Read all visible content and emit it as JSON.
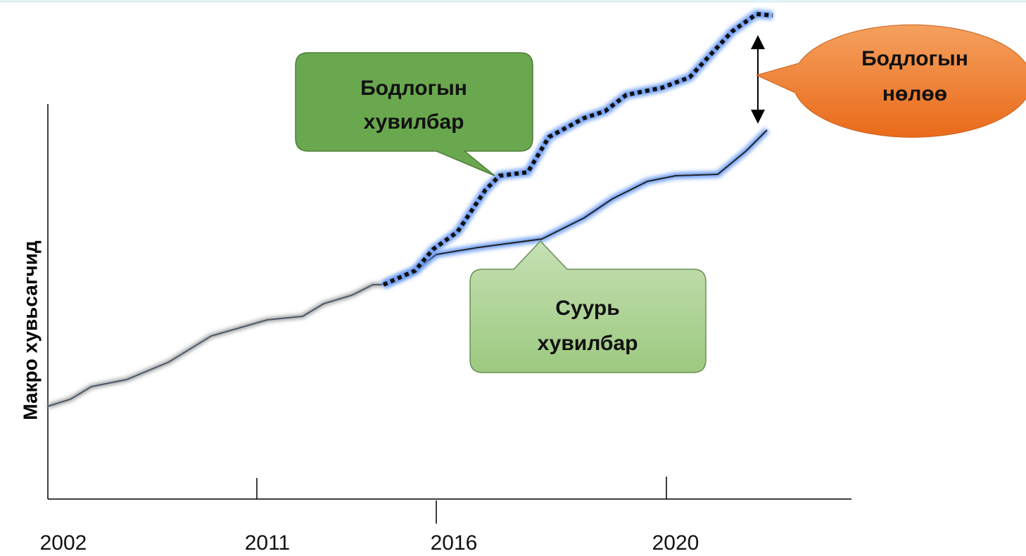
{
  "y_axis_label": "Макро хувьсагчид",
  "x_axis_labels": [
    "2002",
    "2011",
    "2016",
    "2020"
  ],
  "callouts": {
    "policy_scenario": [
      "Бодлогын",
      "хувилбар"
    ],
    "base_scenario": [
      "Суурь",
      "хувилбар"
    ],
    "policy_effect": [
      "Бодлогын",
      "нөлөө"
    ]
  }
}
